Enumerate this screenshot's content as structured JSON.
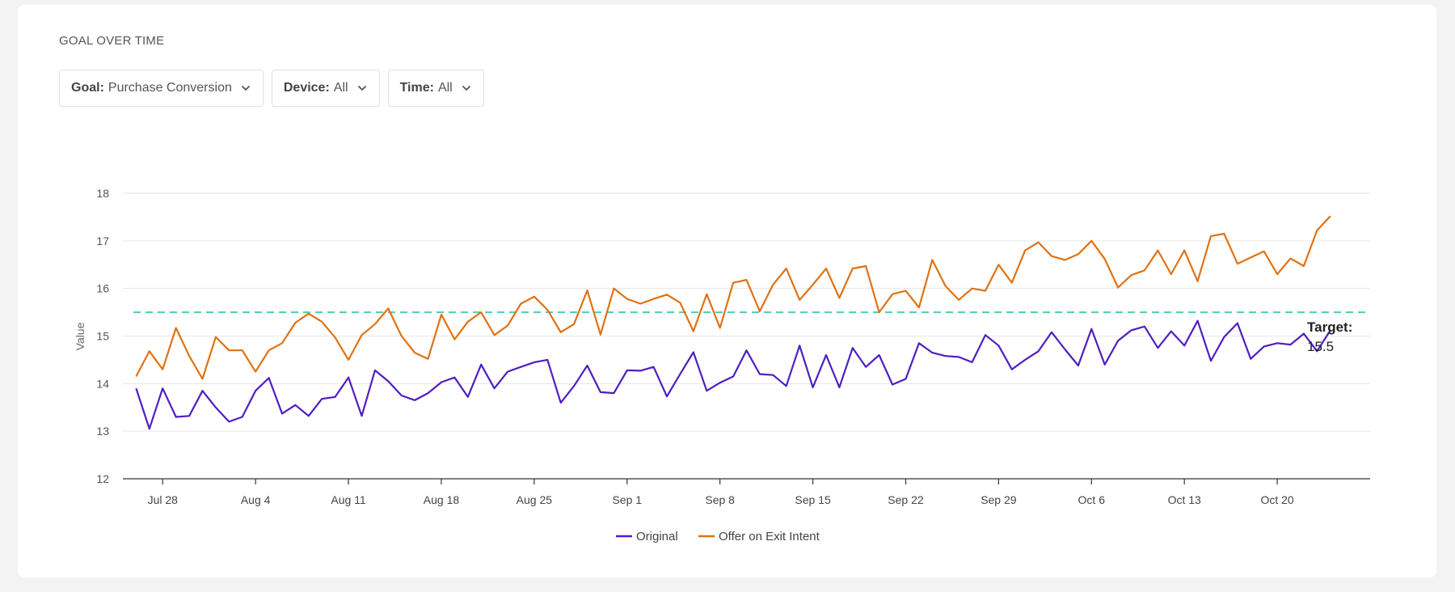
{
  "header": {
    "title": "GOAL OVER TIME"
  },
  "filters": [
    {
      "key": "Goal:",
      "value": "Purchase Conversion"
    },
    {
      "key": "Device:",
      "value": "All"
    },
    {
      "key": "Time:",
      "value": "All"
    }
  ],
  "colors": {
    "original": "#4f1ec2",
    "offer": "#e07212",
    "target": "#4ecdb1"
  },
  "chart_data": {
    "type": "line",
    "xlabel": "",
    "ylabel": "Value",
    "ylim": [
      12,
      18
    ],
    "yticks": [
      12,
      13,
      14,
      15,
      16,
      17,
      18
    ],
    "x_range": [
      "2024-07-25",
      "2024-10-27"
    ],
    "xtick_dates": [
      "2024-07-28",
      "2024-08-04",
      "2024-08-11",
      "2024-08-18",
      "2024-08-25",
      "2024-09-01",
      "2024-09-08",
      "2024-09-15",
      "2024-09-22",
      "2024-09-29",
      "2024-10-06",
      "2024-10-13",
      "2024-10-20"
    ],
    "xtick_labels": [
      "Jul 28",
      "Aug 4",
      "Aug 11",
      "Aug 18",
      "Aug 25",
      "Sep 1",
      "Sep 8",
      "Sep 15",
      "Sep 22",
      "Sep 29",
      "Oct 6",
      "Oct 13",
      "Oct 20"
    ],
    "x_start": "2024-07-26",
    "grid": true,
    "legend": "bottom-center",
    "target": {
      "value": 15.5,
      "label_line1": "Target:",
      "label_line2": "15.5"
    },
    "series": [
      {
        "name": "Original",
        "values": [
          13.9,
          13.05,
          13.9,
          13.3,
          13.32,
          13.85,
          13.5,
          13.2,
          13.3,
          13.85,
          14.12,
          13.37,
          13.55,
          13.32,
          13.68,
          13.72,
          14.13,
          13.32,
          14.28,
          14.05,
          13.75,
          13.65,
          13.8,
          14.03,
          14.13,
          13.72,
          14.4,
          13.9,
          14.25,
          14.35,
          14.45,
          14.5,
          13.6,
          13.95,
          14.38,
          13.82,
          13.8,
          14.28,
          14.27,
          14.35,
          13.73,
          14.2,
          14.66,
          13.85,
          14.02,
          14.15,
          14.7,
          14.2,
          14.18,
          13.95,
          14.8,
          13.92,
          14.6,
          13.92,
          14.75,
          14.35,
          14.6,
          13.98,
          14.1,
          14.85,
          14.65,
          14.58,
          14.56,
          14.45,
          15.02,
          14.8,
          14.3,
          14.5,
          14.68,
          15.08,
          14.72,
          14.38,
          15.15,
          14.4,
          14.9,
          15.12,
          15.2,
          14.75,
          15.1,
          14.8,
          15.32,
          14.48,
          14.98,
          15.27,
          14.52,
          14.78,
          14.85,
          14.82,
          15.05,
          14.68,
          15.12
        ]
      },
      {
        "name": "Offer on Exit Intent",
        "values": [
          14.15,
          14.68,
          14.3,
          15.17,
          14.58,
          14.1,
          14.98,
          14.7,
          14.7,
          14.25,
          14.7,
          14.85,
          15.28,
          15.47,
          15.3,
          14.97,
          14.5,
          15.02,
          15.25,
          15.58,
          15.0,
          14.65,
          14.52,
          15.45,
          14.93,
          15.3,
          15.5,
          15.02,
          15.22,
          15.68,
          15.83,
          15.55,
          15.08,
          15.25,
          15.96,
          15.03,
          16.0,
          15.78,
          15.68,
          15.78,
          15.87,
          15.7,
          15.1,
          15.88,
          15.17,
          16.12,
          16.18,
          15.52,
          16.08,
          16.42,
          15.76,
          16.08,
          16.42,
          15.8,
          16.42,
          16.47,
          15.5,
          15.88,
          15.95,
          15.6,
          16.6,
          16.05,
          15.76,
          16.0,
          15.95,
          16.5,
          16.12,
          16.8,
          16.97,
          16.68,
          16.6,
          16.72,
          17.0,
          16.62,
          16.02,
          16.28,
          16.38,
          16.8,
          16.3,
          16.8,
          16.15,
          17.1,
          17.15,
          16.52,
          16.65,
          16.78,
          16.3,
          16.63,
          16.47,
          17.22,
          17.52
        ]
      }
    ]
  }
}
